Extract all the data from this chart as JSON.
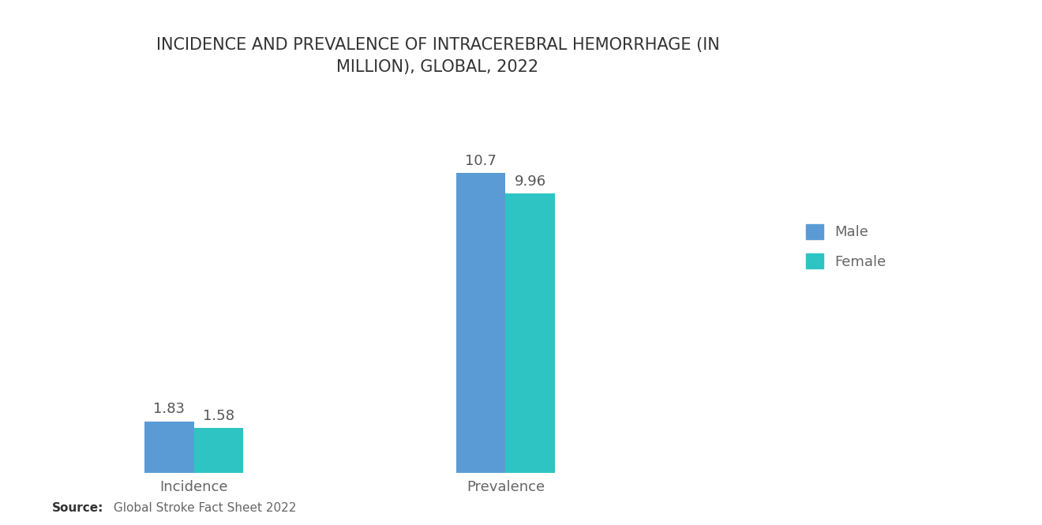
{
  "title": "INCIDENCE AND PREVALENCE OF INTRACEREBRAL HEMORRHAGE (IN\nMILLION), GLOBAL, 2022",
  "categories": [
    "Incidence",
    "Prevalence"
  ],
  "male_values": [
    1.83,
    10.7
  ],
  "female_values": [
    1.58,
    9.96
  ],
  "male_color": "#5B9BD5",
  "female_color": "#2EC4C4",
  "bar_width": 0.35,
  "ylim": [
    0,
    13.5
  ],
  "xlim": [
    -0.5,
    4.5
  ],
  "x_positions": [
    0.5,
    2.7
  ],
  "source_bold": "Source:",
  "source_text": " Global Stroke Fact Sheet 2022",
  "legend_labels": [
    "Male",
    "Female"
  ],
  "background_color": "#ffffff",
  "label_fontsize": 13,
  "title_fontsize": 15,
  "value_fontsize": 13,
  "source_fontsize": 11,
  "value_color": "#555555",
  "label_color": "#666666"
}
